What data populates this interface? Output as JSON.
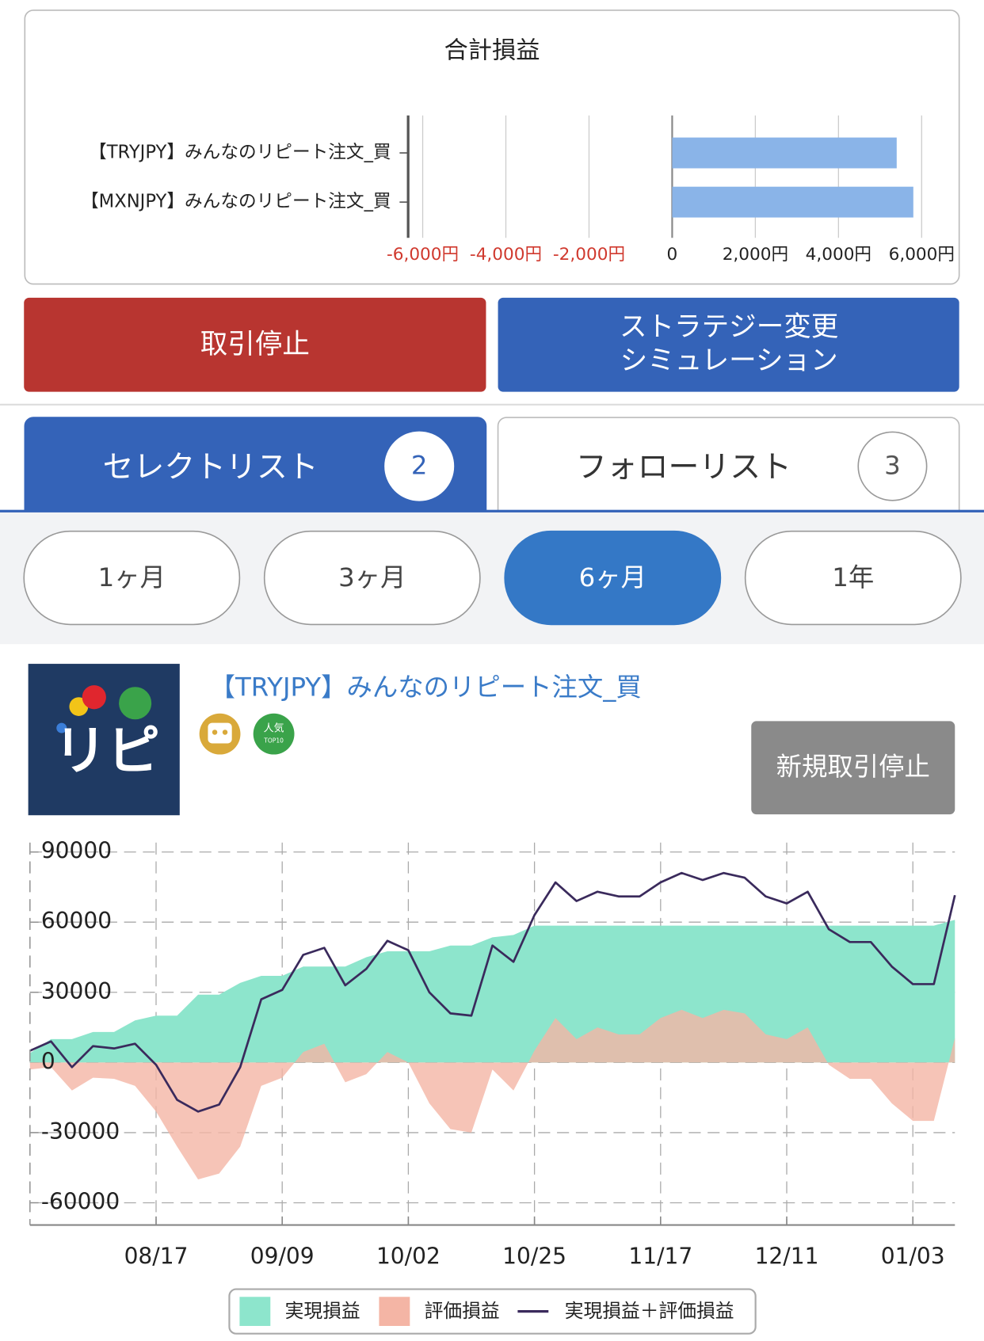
{
  "chart_data": [
    {
      "type": "bar",
      "orientation": "horizontal",
      "title": "合計損益",
      "categories": [
        "【TRYJPY】みんなのリピート注文_買",
        "【MXNJPY】みんなのリピート注文_買"
      ],
      "values": [
        5400,
        5800
      ],
      "color": "#8ab4e8",
      "xlim": [
        -6350,
        6800
      ],
      "xticks": [
        {
          "value": -6000,
          "label": "-6,000円"
        },
        {
          "value": -4000,
          "label": "-4,000円"
        },
        {
          "value": -2000,
          "label": "-2,000円"
        },
        0,
        {
          "value": 2000,
          "label": "2,000円"
        },
        {
          "value": 4000,
          "label": "4,000円"
        },
        {
          "value": 6000,
          "label": "6,000円"
        }
      ],
      "negative_tick_color": "#d0392e",
      "grid": true
    },
    {
      "type": "area",
      "categories": [
        null,
        null,
        null,
        null,
        null,
        null,
        "08/17",
        null,
        null,
        null,
        null,
        null,
        "09/09",
        null,
        null,
        null,
        null,
        null,
        "10/02",
        null,
        null,
        null,
        null,
        null,
        "10/25",
        null,
        null,
        null,
        null,
        null,
        "11/17",
        null,
        null,
        null,
        null,
        null,
        "12/11",
        null,
        null,
        null,
        null,
        null,
        "01/03",
        null,
        null
      ],
      "series": [
        {
          "name": "実現損益",
          "color": "#8de5cc",
          "kind": "area",
          "values": [
            4000,
            10000,
            10000,
            13000,
            13000,
            18000,
            20000,
            20000,
            29000,
            29000,
            34000,
            37000,
            37000,
            41000,
            41000,
            41000,
            45000,
            47500,
            47500,
            47500,
            50000,
            50000,
            53500,
            54500,
            58500,
            58500,
            58500,
            58500,
            58500,
            58500,
            58500,
            58500,
            58500,
            58500,
            58500,
            58500,
            58500,
            58500,
            58500,
            58500,
            58500,
            58500,
            58500,
            58500,
            61000
          ]
        },
        {
          "name": "評価損益",
          "color": "#f4b5a5",
          "kind": "area",
          "values": [
            -3000,
            -2000,
            -12000,
            -6500,
            -7000,
            -10000,
            -21000,
            -36000,
            -50000,
            -47500,
            -36000,
            -10000,
            -6500,
            4500,
            8000,
            -8500,
            -5000,
            4500,
            0,
            -17500,
            -28500,
            -30000,
            -3000,
            -12000,
            5000,
            19000,
            10000,
            15000,
            12000,
            12000,
            19000,
            22500,
            19000,
            22500,
            21000,
            12000,
            10000,
            15000,
            -1000,
            -7000,
            -7000,
            -17500,
            -25000,
            -25000,
            10500
          ]
        },
        {
          "name": "実現損益＋評価損益",
          "color": "#3a2a5c",
          "kind": "line",
          "values": [
            5000,
            9000,
            -2000,
            7000,
            6000,
            8000,
            -1000,
            -16000,
            -21000,
            -18000,
            -2000,
            27000,
            31000,
            46000,
            49000,
            33000,
            40000,
            52000,
            48000,
            30000,
            21000,
            20000,
            50000,
            43000,
            63000,
            77000,
            69000,
            73000,
            71000,
            71000,
            77000,
            81000,
            78000,
            81000,
            79000,
            71000,
            68000,
            73000,
            57000,
            51500,
            51500,
            41000,
            33500,
            33500,
            71500
          ]
        }
      ],
      "ylim": [
        -69500,
        94000
      ],
      "yticks": [
        -60000,
        -30000,
        0,
        30000,
        60000,
        90000
      ],
      "grid": true,
      "legend": "bottom"
    }
  ],
  "buttons": {
    "stop": "取引停止",
    "simulation": [
      "ストラテジー変更",
      "シミュレーション"
    ]
  },
  "tabs": [
    {
      "label": "セレクトリスト",
      "count": 2,
      "selected": true
    },
    {
      "label": "フォローリスト",
      "count": 3,
      "selected": false
    }
  ],
  "periods": {
    "options": [
      "1ヶ月",
      "3ヶ月",
      "6ヶ月",
      "1年"
    ],
    "selected": 2
  },
  "strategy": {
    "logo": "リピ",
    "title": "【TRYJPY】みんなのリピート注文_買",
    "badge": [
      "人気",
      "TOP10"
    ],
    "button": "新規取引停止"
  }
}
